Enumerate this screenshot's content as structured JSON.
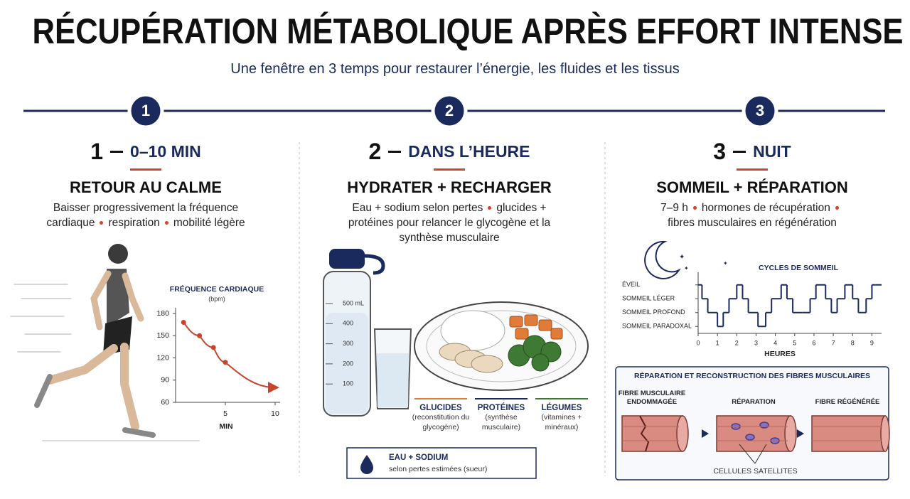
{
  "header": {
    "title": "RÉCUPÉRATION MÉTABOLIQUE APRÈS EFFORT INTENSE",
    "subtitle": "Une fenêtre en 3 temps pour restaurer l’énergie, les fluides et les tissus"
  },
  "steps": [
    {
      "badge": "1",
      "number": "1",
      "time": "0–10 MIN",
      "heading": "RETOUR AU CALME",
      "points": [
        "Baisser progressivement la fréquence cardiaque",
        "respiration",
        "mobilité légère"
      ]
    },
    {
      "badge": "2",
      "number": "2",
      "time": "DANS L’HEURE",
      "heading": "HYDRATER + RECHARGER",
      "points": [
        "Eau + sodium selon pertes",
        "glucides + protéines pour relancer le glycogène et la synthèse musculaire"
      ]
    },
    {
      "badge": "3",
      "number": "3",
      "time": "NUIT",
      "heading": "SOMMEIL + RÉPARATION",
      "points": [
        "7–9 h",
        "hormones de récupération",
        "fibres musculaires en régénération"
      ]
    }
  ],
  "chart_data": [
    {
      "type": "line",
      "title": "FRÉQUENCE CARDIAQUE",
      "unit": "(bpm)",
      "x_label": "MIN",
      "color": "#c8442c",
      "x": [
        0.8,
        2.4,
        3.8,
        5,
        10
      ],
      "values": [
        168,
        150,
        134,
        114,
        80
      ],
      "xlim": [
        0,
        10.5
      ],
      "xticks": [
        5,
        10
      ],
      "ylim": [
        60,
        180
      ],
      "yticks": [
        60,
        90,
        120,
        150,
        180
      ]
    },
    {
      "type": "line",
      "step": true,
      "title": "CYCLES DE SOMMEIL",
      "x_label": "HEURES",
      "color": "#1b2a5c",
      "x": [
        0,
        0.2,
        0.5,
        1.0,
        1.3,
        1.6,
        2.0,
        2.3,
        2.6,
        3.1,
        3.5,
        3.8,
        4.3,
        4.6,
        4.9,
        5.4,
        5.8,
        6.1,
        6.6,
        6.9,
        7.2,
        7.6,
        8.0,
        8.3,
        8.7,
        9.0,
        9.2
      ],
      "values": [
        3,
        2,
        1,
        0,
        1,
        2,
        3,
        2,
        1,
        0,
        1,
        2,
        3,
        2,
        1,
        1,
        2,
        3,
        2,
        1,
        2,
        3,
        2,
        1,
        2,
        3,
        3
      ],
      "xlim": [
        0,
        9.5
      ],
      "xticks": [
        0,
        1,
        2,
        3,
        4,
        5,
        6,
        7,
        8,
        9
      ],
      "ylim": [
        -0.5,
        3.5
      ],
      "yticks": [
        {
          "value": 3,
          "label": "ÉVEIL"
        },
        {
          "value": 2,
          "label": "SOMMEIL LÉGER"
        },
        {
          "value": 1,
          "label": "SOMMEIL PROFOND"
        },
        {
          "value": 0,
          "label": "SOMMEIL PARADOXAL"
        }
      ]
    }
  ],
  "hydration": {
    "bottle_scale": [
      "500 mL",
      "400",
      "300",
      "200",
      "100"
    ],
    "foods": [
      {
        "name": "GLUCIDES",
        "detail": "(reconstitution du glycogène)",
        "color": "#e07b39"
      },
      {
        "name": "PROTÉINES",
        "detail": "(synthèse musculaire)",
        "color": "#1b2a5c"
      },
      {
        "name": "LÉGUMES",
        "detail": "(vitamines + minéraux)",
        "color": "#3f7a35"
      }
    ],
    "box": {
      "title": "EAU + SODIUM",
      "detail": "selon pertes estimées (sueur)"
    }
  },
  "fibers": {
    "title": "RÉPARATION ET RECONSTRUCTION DES FIBRES MUSCULAIRES",
    "stages": [
      "FIBRE MUSCULAIRE ENDOMMAGÉE",
      "RÉPARATION",
      "FIBRE RÉGÉNÉRÉE"
    ],
    "caption": "CELLULES SATELLITES"
  }
}
